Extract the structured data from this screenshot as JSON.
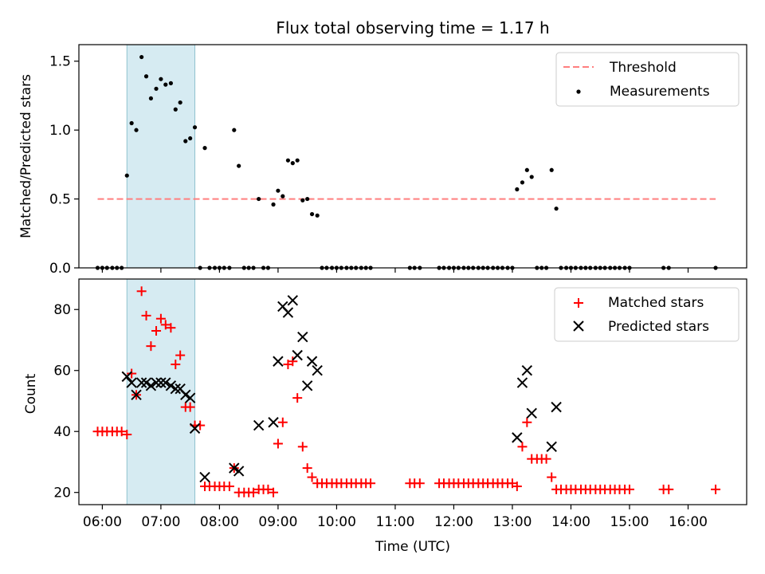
{
  "title": "Flux total observing time = 1.17 h",
  "chart_data": [
    {
      "type": "scatter",
      "ylabel": "Matched/Predicted stars",
      "xlabel": "",
      "xlim": [
        5.6,
        17.0
      ],
      "ylim": [
        0.0,
        1.62
      ],
      "yticks": [
        0.0,
        0.5,
        1.0,
        1.5
      ],
      "ytick_labels": [
        "0.0",
        "0.5",
        "1.0",
        "1.5"
      ],
      "highlight_span": [
        6.42,
        7.58
      ],
      "legend_position": "top-right",
      "threshold": {
        "name": "Threshold",
        "y": 0.5,
        "x_range": [
          5.92,
          16.47
        ],
        "color": "#ff7f7f",
        "style": "dashed"
      },
      "series": [
        {
          "name": "Measurements",
          "marker": "dot",
          "color": "#000000",
          "points": [
            [
              5.92,
              0
            ],
            [
              6.0,
              0
            ],
            [
              6.08,
              0
            ],
            [
              6.17,
              0
            ],
            [
              6.25,
              0
            ],
            [
              6.33,
              0
            ],
            [
              6.42,
              0.67
            ],
            [
              6.5,
              1.05
            ],
            [
              6.58,
              1.0
            ],
            [
              6.67,
              1.53
            ],
            [
              6.75,
              1.39
            ],
            [
              6.83,
              1.23
            ],
            [
              6.92,
              1.3
            ],
            [
              7.0,
              1.37
            ],
            [
              7.08,
              1.33
            ],
            [
              7.17,
              1.34
            ],
            [
              7.25,
              1.15
            ],
            [
              7.33,
              1.2
            ],
            [
              7.42,
              0.92
            ],
            [
              7.5,
              0.94
            ],
            [
              7.58,
              1.02
            ],
            [
              7.67,
              0
            ],
            [
              7.75,
              0.87
            ],
            [
              7.83,
              0
            ],
            [
              7.92,
              0
            ],
            [
              8.0,
              0
            ],
            [
              8.08,
              0
            ],
            [
              8.17,
              0
            ],
            [
              8.25,
              1.0
            ],
            [
              8.33,
              0.74
            ],
            [
              8.42,
              0
            ],
            [
              8.5,
              0
            ],
            [
              8.58,
              0
            ],
            [
              8.67,
              0.5
            ],
            [
              8.75,
              0
            ],
            [
              8.83,
              0
            ],
            [
              8.92,
              0.46
            ],
            [
              9.0,
              0.56
            ],
            [
              9.08,
              0.52
            ],
            [
              9.17,
              0.78
            ],
            [
              9.25,
              0.76
            ],
            [
              9.33,
              0.78
            ],
            [
              9.42,
              0.49
            ],
            [
              9.5,
              0.5
            ],
            [
              9.58,
              0.39
            ],
            [
              9.67,
              0.38
            ],
            [
              9.75,
              0
            ],
            [
              9.83,
              0
            ],
            [
              9.92,
              0
            ],
            [
              10.0,
              0
            ],
            [
              10.08,
              0
            ],
            [
              10.17,
              0
            ],
            [
              10.25,
              0
            ],
            [
              10.33,
              0
            ],
            [
              10.42,
              0
            ],
            [
              10.5,
              0
            ],
            [
              10.58,
              0
            ],
            [
              11.25,
              0
            ],
            [
              11.33,
              0
            ],
            [
              11.42,
              0
            ],
            [
              11.75,
              0
            ],
            [
              11.83,
              0
            ],
            [
              11.92,
              0
            ],
            [
              12.0,
              0
            ],
            [
              12.08,
              0
            ],
            [
              12.17,
              0
            ],
            [
              12.25,
              0
            ],
            [
              12.33,
              0
            ],
            [
              12.42,
              0
            ],
            [
              12.5,
              0
            ],
            [
              12.58,
              0
            ],
            [
              12.67,
              0
            ],
            [
              12.75,
              0
            ],
            [
              12.83,
              0
            ],
            [
              12.92,
              0
            ],
            [
              13.0,
              0
            ],
            [
              13.08,
              0.57
            ],
            [
              13.17,
              0.62
            ],
            [
              13.25,
              0.71
            ],
            [
              13.33,
              0.66
            ],
            [
              13.42,
              0
            ],
            [
              13.5,
              0
            ],
            [
              13.58,
              0
            ],
            [
              13.67,
              0.71
            ],
            [
              13.75,
              0.43
            ],
            [
              13.83,
              0
            ],
            [
              13.92,
              0
            ],
            [
              14.0,
              0
            ],
            [
              14.08,
              0
            ],
            [
              14.17,
              0
            ],
            [
              14.25,
              0
            ],
            [
              14.33,
              0
            ],
            [
              14.42,
              0
            ],
            [
              14.5,
              0
            ],
            [
              14.58,
              0
            ],
            [
              14.67,
              0
            ],
            [
              14.75,
              0
            ],
            [
              14.83,
              0
            ],
            [
              14.92,
              0
            ],
            [
              15.0,
              0
            ],
            [
              15.58,
              0
            ],
            [
              15.67,
              0
            ],
            [
              16.47,
              0
            ]
          ]
        }
      ]
    },
    {
      "type": "scatter",
      "ylabel": "Count",
      "xlabel": "Time (UTC)",
      "xlim": [
        5.6,
        17.0
      ],
      "ylim": [
        16.0,
        90.0
      ],
      "yticks": [
        20,
        40,
        60,
        80
      ],
      "ytick_labels": [
        "20",
        "40",
        "60",
        "80"
      ],
      "xticks": [
        6,
        7,
        8,
        9,
        10,
        11,
        12,
        13,
        14,
        15,
        16
      ],
      "xtick_labels": [
        "06:00",
        "07:00",
        "08:00",
        "09:00",
        "10:00",
        "11:00",
        "12:00",
        "13:00",
        "14:00",
        "15:00",
        "16:00"
      ],
      "highlight_span": [
        6.42,
        7.58
      ],
      "legend_position": "top-right",
      "series": [
        {
          "name": "Matched stars",
          "marker": "plus",
          "color": "#ff0000",
          "points": [
            [
              5.92,
              40
            ],
            [
              6.0,
              40
            ],
            [
              6.08,
              40
            ],
            [
              6.17,
              40
            ],
            [
              6.25,
              40
            ],
            [
              6.33,
              40
            ],
            [
              6.42,
              39
            ],
            [
              6.5,
              59
            ],
            [
              6.58,
              52
            ],
            [
              6.67,
              86
            ],
            [
              6.75,
              78
            ],
            [
              6.83,
              68
            ],
            [
              6.92,
              73
            ],
            [
              7.0,
              77
            ],
            [
              7.08,
              75
            ],
            [
              7.17,
              74
            ],
            [
              7.25,
              62
            ],
            [
              7.33,
              65
            ],
            [
              7.42,
              48
            ],
            [
              7.5,
              48
            ],
            [
              7.58,
              42
            ],
            [
              7.67,
              42
            ],
            [
              7.75,
              22
            ],
            [
              7.83,
              22
            ],
            [
              7.92,
              22
            ],
            [
              8.0,
              22
            ],
            [
              8.08,
              22
            ],
            [
              8.17,
              22
            ],
            [
              8.25,
              28
            ],
            [
              8.33,
              20
            ],
            [
              8.42,
              20
            ],
            [
              8.5,
              20
            ],
            [
              8.58,
              20
            ],
            [
              8.67,
              21
            ],
            [
              8.75,
              21
            ],
            [
              8.83,
              21
            ],
            [
              8.92,
              20
            ],
            [
              9.0,
              36
            ],
            [
              9.08,
              43
            ],
            [
              9.17,
              62
            ],
            [
              9.25,
              63
            ],
            [
              9.33,
              51
            ],
            [
              9.42,
              35
            ],
            [
              9.5,
              28
            ],
            [
              9.58,
              25
            ],
            [
              9.67,
              23
            ],
            [
              9.75,
              23
            ],
            [
              9.83,
              23
            ],
            [
              9.92,
              23
            ],
            [
              10.0,
              23
            ],
            [
              10.08,
              23
            ],
            [
              10.17,
              23
            ],
            [
              10.25,
              23
            ],
            [
              10.33,
              23
            ],
            [
              10.42,
              23
            ],
            [
              10.5,
              23
            ],
            [
              10.58,
              23
            ],
            [
              11.25,
              23
            ],
            [
              11.33,
              23
            ],
            [
              11.42,
              23
            ],
            [
              11.75,
              23
            ],
            [
              11.83,
              23
            ],
            [
              11.92,
              23
            ],
            [
              12.0,
              23
            ],
            [
              12.08,
              23
            ],
            [
              12.17,
              23
            ],
            [
              12.25,
              23
            ],
            [
              12.33,
              23
            ],
            [
              12.42,
              23
            ],
            [
              12.5,
              23
            ],
            [
              12.58,
              23
            ],
            [
              12.67,
              23
            ],
            [
              12.75,
              23
            ],
            [
              12.83,
              23
            ],
            [
              12.92,
              23
            ],
            [
              13.0,
              23
            ],
            [
              13.08,
              22
            ],
            [
              13.17,
              35
            ],
            [
              13.25,
              43
            ],
            [
              13.33,
              31
            ],
            [
              13.42,
              31
            ],
            [
              13.5,
              31
            ],
            [
              13.58,
              31
            ],
            [
              13.67,
              25
            ],
            [
              13.75,
              21
            ],
            [
              13.83,
              21
            ],
            [
              13.92,
              21
            ],
            [
              14.0,
              21
            ],
            [
              14.08,
              21
            ],
            [
              14.17,
              21
            ],
            [
              14.25,
              21
            ],
            [
              14.33,
              21
            ],
            [
              14.42,
              21
            ],
            [
              14.5,
              21
            ],
            [
              14.58,
              21
            ],
            [
              14.67,
              21
            ],
            [
              14.75,
              21
            ],
            [
              14.83,
              21
            ],
            [
              14.92,
              21
            ],
            [
              15.0,
              21
            ],
            [
              15.58,
              21
            ],
            [
              15.67,
              21
            ],
            [
              16.47,
              21
            ]
          ]
        },
        {
          "name": "Predicted stars",
          "marker": "x",
          "color": "#000000",
          "points": [
            [
              6.42,
              58
            ],
            [
              6.5,
              56
            ],
            [
              6.58,
              52
            ],
            [
              6.67,
              56
            ],
            [
              6.75,
              56
            ],
            [
              6.83,
              55
            ],
            [
              6.92,
              56
            ],
            [
              7.0,
              56
            ],
            [
              7.08,
              56
            ],
            [
              7.17,
              55
            ],
            [
              7.25,
              54
            ],
            [
              7.33,
              54
            ],
            [
              7.42,
              52
            ],
            [
              7.5,
              51
            ],
            [
              7.58,
              41
            ],
            [
              7.75,
              25
            ],
            [
              8.25,
              28
            ],
            [
              8.33,
              27
            ],
            [
              8.67,
              42
            ],
            [
              8.92,
              43
            ],
            [
              9.0,
              63
            ],
            [
              9.08,
              81
            ],
            [
              9.17,
              79
            ],
            [
              9.25,
              83
            ],
            [
              9.33,
              65
            ],
            [
              9.42,
              71
            ],
            [
              9.5,
              55
            ],
            [
              9.58,
              63
            ],
            [
              9.67,
              60
            ],
            [
              13.08,
              38
            ],
            [
              13.17,
              56
            ],
            [
              13.25,
              60
            ],
            [
              13.33,
              46
            ],
            [
              13.67,
              35
            ],
            [
              13.75,
              48
            ]
          ]
        }
      ]
    }
  ]
}
